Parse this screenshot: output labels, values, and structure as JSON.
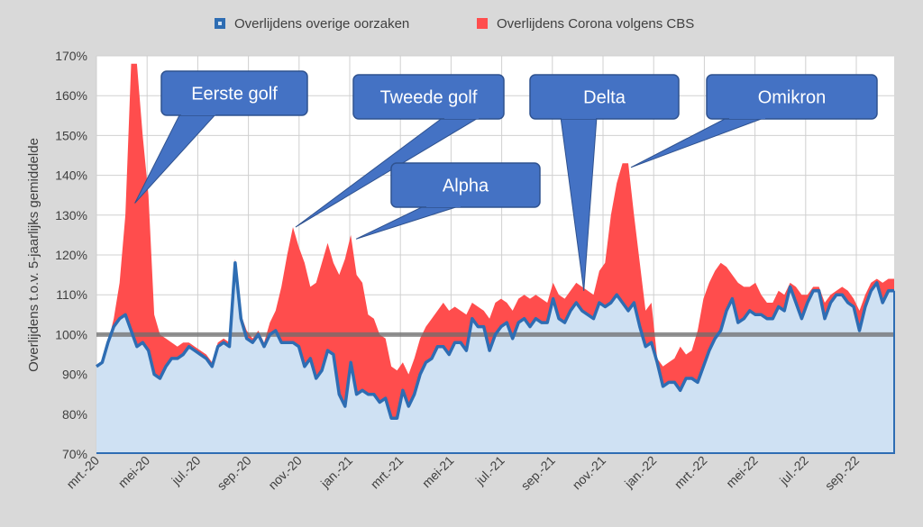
{
  "chart_data": {
    "type": "area",
    "title": "",
    "ylabel": "Overlijdens t.o.v. 5-jaarlijks gemiddelde",
    "xlabel": "",
    "ylim": [
      70,
      170
    ],
    "yticks": [
      "70%",
      "80%",
      "90%",
      "100%",
      "110%",
      "120%",
      "130%",
      "140%",
      "150%",
      "160%",
      "170%"
    ],
    "ytick_values": [
      70,
      80,
      90,
      100,
      110,
      120,
      130,
      140,
      150,
      160,
      170
    ],
    "xlim": [
      0,
      137
    ],
    "xtick_labels": [
      "mrt.-20",
      "mei-20",
      "jul.-20",
      "sep.-20",
      "nov.-20",
      "jan.-21",
      "mrt.-21",
      "mei-21",
      "jul.-21",
      "sep.-21",
      "nov.-21",
      "jan.-22",
      "mrt.-22",
      "mei-22",
      "jul.-22",
      "sep.-22"
    ],
    "xtick_weeks": [
      0,
      8.7,
      17.4,
      26.1,
      34.8,
      43.5,
      52.2,
      60.9,
      69.6,
      78.3,
      87,
      95.7,
      104.4,
      113.1,
      121.8,
      130.5
    ],
    "reference_line": {
      "value": 100,
      "color": "#6e6e6e"
    },
    "series": [
      {
        "name": "Overlijdens overige oorzaken",
        "color": "#2e6db3",
        "fill": "#cfe1f3",
        "values": [
          92,
          93,
          98,
          102,
          104,
          105,
          101,
          97,
          98,
          96,
          90,
          89,
          92,
          94,
          94,
          95,
          97,
          96,
          95,
          94,
          92,
          97,
          98,
          97,
          118,
          104,
          99,
          98,
          100,
          97,
          100,
          101,
          98,
          98,
          98,
          97,
          92,
          94,
          89,
          91,
          96,
          95,
          85,
          82,
          93,
          85,
          86,
          85,
          85,
          83,
          84,
          79,
          79,
          86,
          82,
          85,
          90,
          93,
          94,
          97,
          97,
          95,
          98,
          98,
          96,
          104,
          102,
          102,
          96,
          100,
          102,
          103,
          99,
          103,
          104,
          102,
          104,
          103,
          103,
          109,
          104,
          103,
          106,
          108,
          106,
          105,
          104,
          108,
          107,
          108,
          110,
          108,
          106,
          108,
          102,
          97,
          98,
          93,
          87,
          88,
          88,
          86,
          89,
          89,
          88,
          92,
          96,
          99,
          101,
          106,
          109,
          103,
          104,
          106,
          105,
          105,
          104,
          104,
          107,
          106,
          112,
          108,
          104,
          108,
          111,
          111,
          104,
          108,
          110,
          110,
          108,
          107,
          101,
          107,
          111,
          113,
          108,
          111,
          111
        ]
      },
      {
        "name": "Overlijdens Corona volgens CBS",
        "color": "#ff4d4d",
        "values": [
          92,
          93,
          98,
          104,
          113,
          130,
          168,
          168,
          150,
          135,
          105,
          100,
          99,
          98,
          97,
          98,
          98,
          97,
          96,
          95,
          93,
          98,
          99,
          98,
          119,
          105,
          101,
          99,
          101,
          98,
          103,
          106,
          112,
          120,
          127,
          122,
          118,
          112,
          113,
          118,
          123,
          118,
          115,
          119,
          125,
          115,
          113,
          105,
          104,
          100,
          99,
          92,
          91,
          93,
          90,
          94,
          99,
          102,
          104,
          106,
          108,
          106,
          107,
          106,
          105,
          108,
          107,
          106,
          104,
          108,
          109,
          108,
          106,
          109,
          110,
          109,
          110,
          109,
          108,
          113,
          110,
          109,
          111,
          113,
          112,
          111,
          110,
          116,
          118,
          130,
          138,
          143,
          143,
          130,
          118,
          106,
          108,
          94,
          92,
          93,
          94,
          97,
          95,
          96,
          101,
          109,
          113,
          116,
          118,
          117,
          115,
          113,
          112,
          112,
          113,
          110,
          108,
          108,
          111,
          110,
          113,
          112,
          110,
          110,
          112,
          112,
          108,
          110,
          111,
          112,
          111,
          109,
          106,
          110,
          113,
          114,
          113,
          114,
          114
        ]
      }
    ],
    "legend": {
      "position": "top-center",
      "entries": [
        "Overlijdens overige oorzaken",
        "Overlijdens Corona volgens CBS"
      ]
    },
    "annotations": [
      {
        "label": "Eerste golf",
        "week": 6.6,
        "value": 133
      },
      {
        "label": "Tweede golf",
        "week": 34.2,
        "value": 127
      },
      {
        "label": "Alpha",
        "week": 44.6,
        "value": 124
      },
      {
        "label": "Delta",
        "week": 83.7,
        "value": 111
      },
      {
        "label": "Omikron",
        "week": 91.8,
        "value": 142
      }
    ]
  },
  "colors": {
    "callout": "#4472c4",
    "callout_border": "#2f528f",
    "background": "#d9d9d9",
    "plot": "#ffffff",
    "grid": "#d0d0d0"
  }
}
